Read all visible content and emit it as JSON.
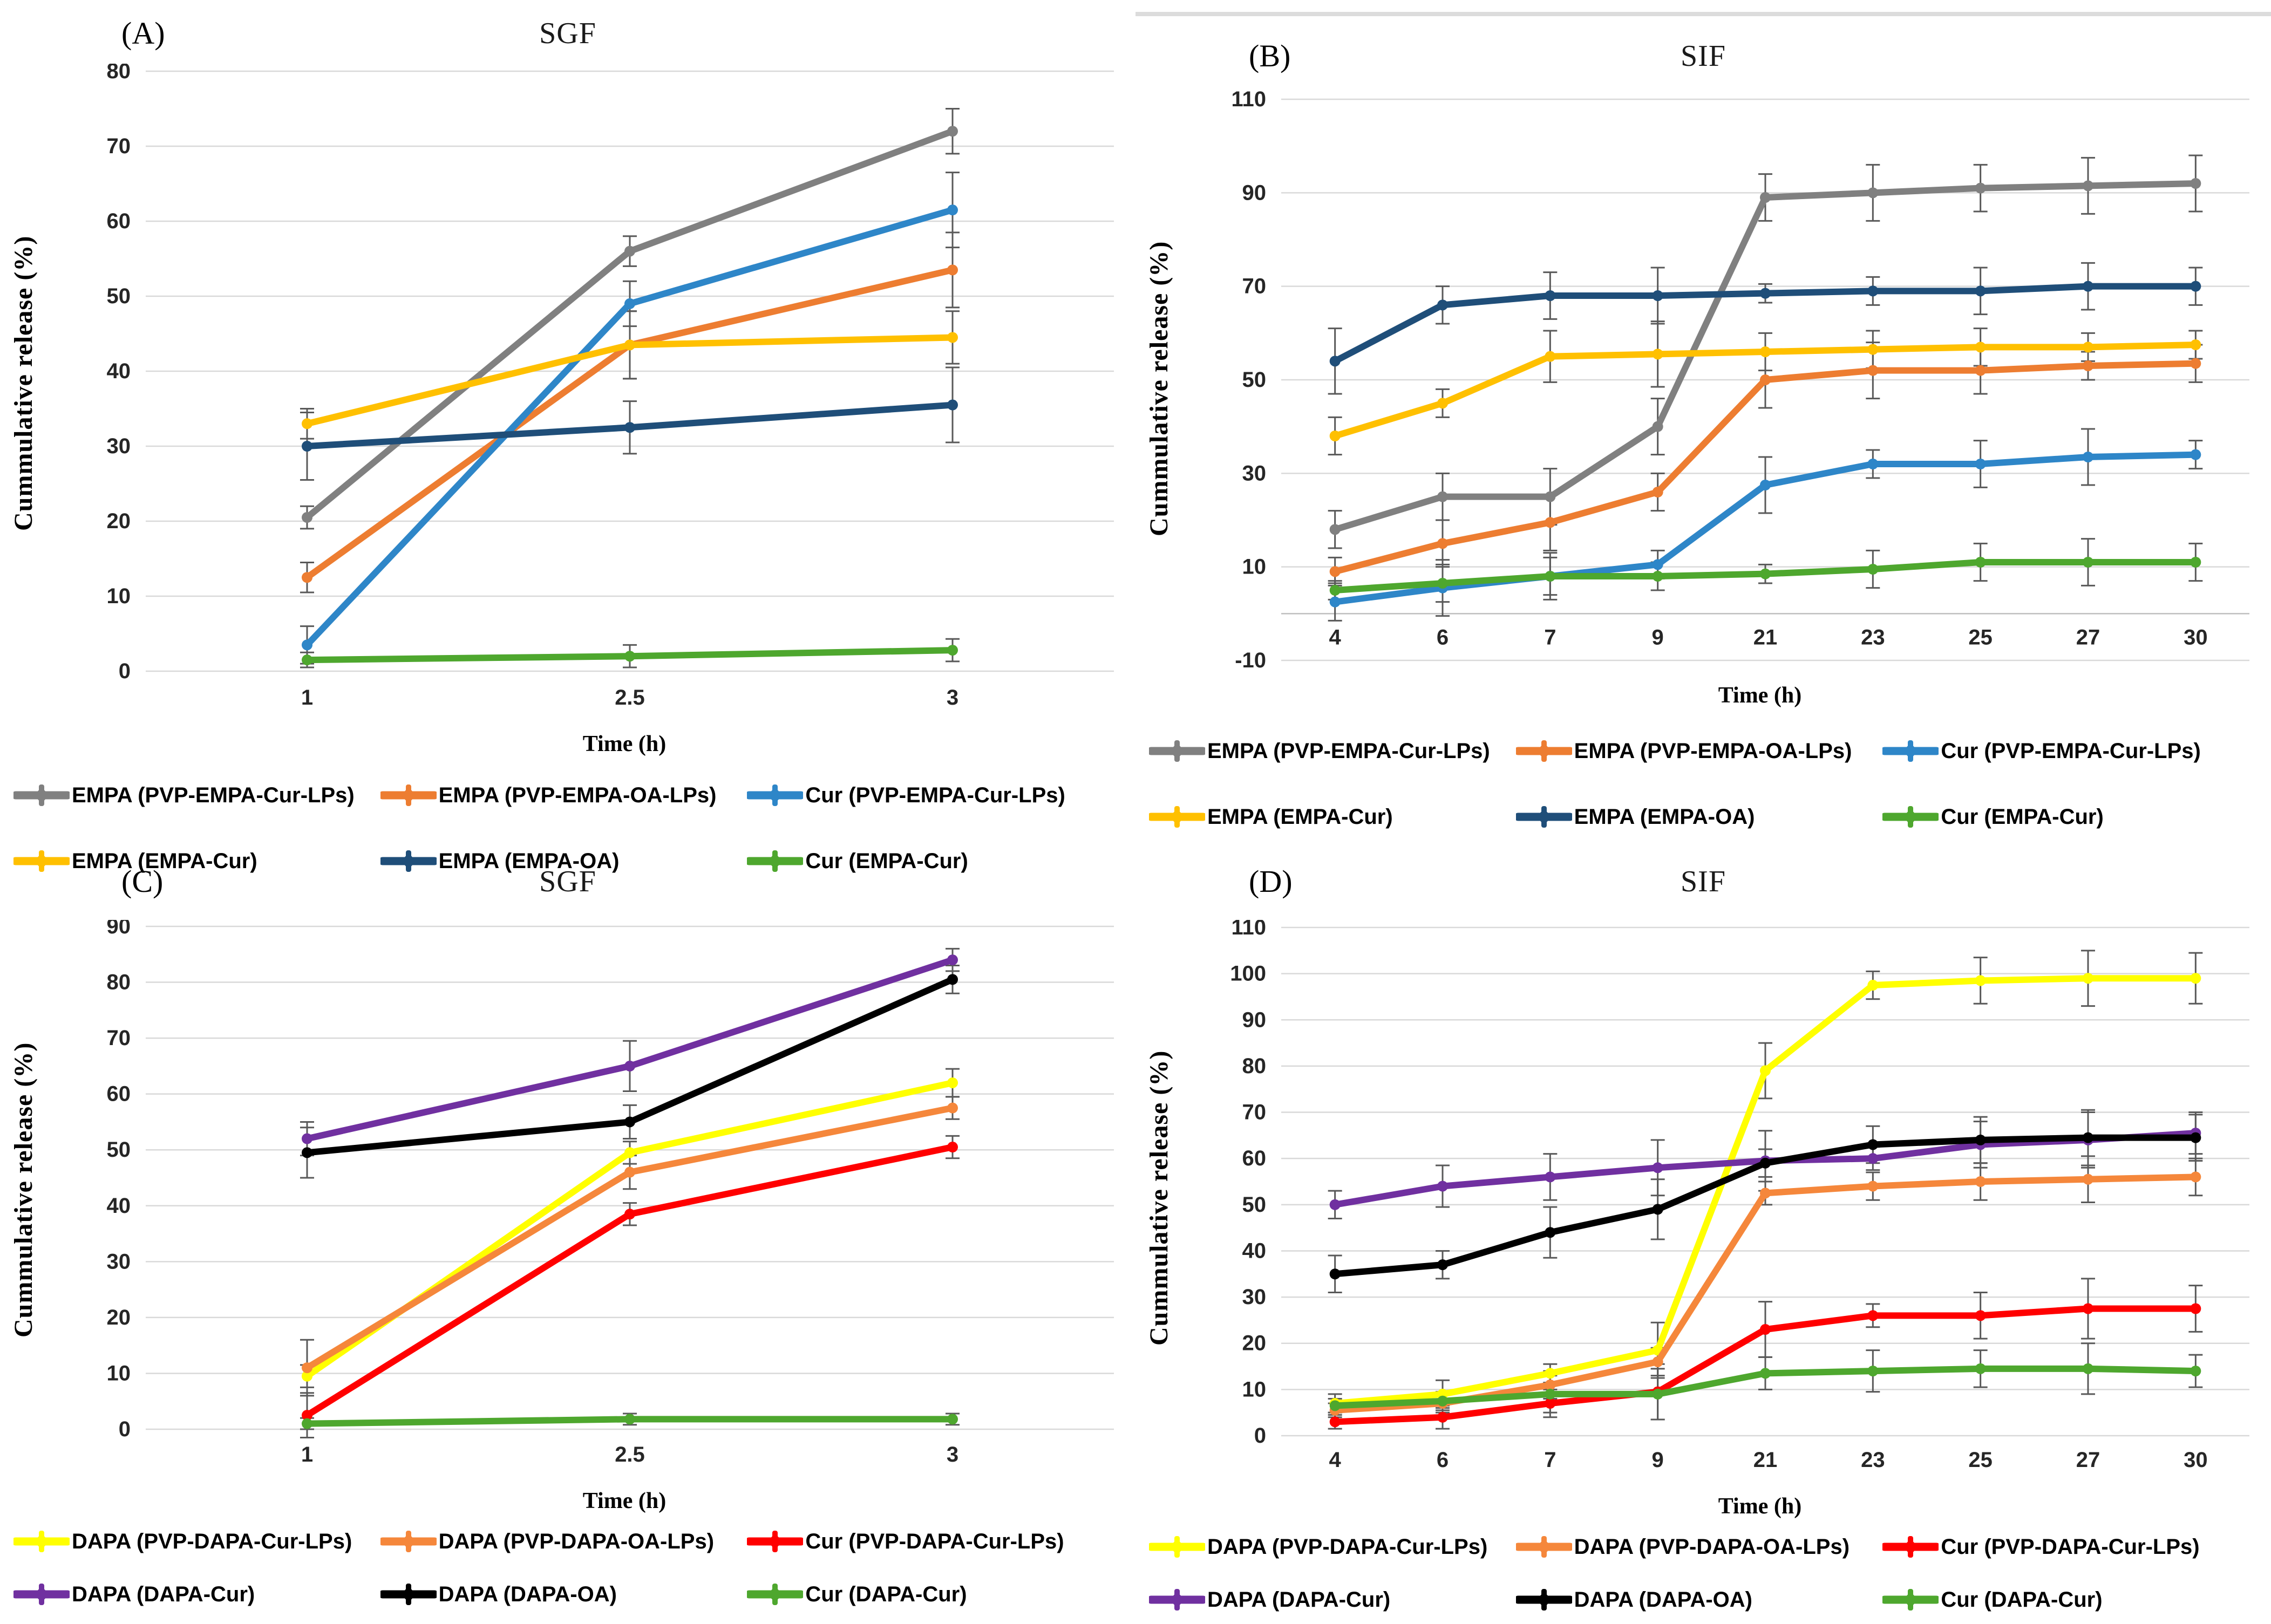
{
  "figure": {
    "xlabel": "Time (h)",
    "ylabel": "Cummulative release (%)"
  },
  "chart_data": [
    {
      "id": "A",
      "panel_label": "(A)",
      "title": "SGF",
      "type": "line",
      "xlabel": "Time (h)",
      "ylabel": "Cummulative release (%)",
      "categories": [
        "1",
        "2.5",
        "3"
      ],
      "ylim": [
        0,
        80
      ],
      "yticks": [
        0,
        10,
        20,
        30,
        40,
        50,
        60,
        70,
        80
      ],
      "grid": true,
      "legend_position": "bottom",
      "series": [
        {
          "name": "EMPA (PVP-EMPA-Cur-LPs)",
          "color": "#808080",
          "values": [
            20.5,
            56,
            72
          ],
          "err": [
            1.5,
            2,
            3
          ]
        },
        {
          "name": "EMPA (PVP-EMPA-OA-LPs)",
          "color": "#ED7D31",
          "values": [
            12.5,
            43.5,
            53.5
          ],
          "err": [
            2,
            4.5,
            5
          ]
        },
        {
          "name": "Cur (PVP-EMPA-Cur-LPs)",
          "color": "#2E86C8",
          "values": [
            3.5,
            49,
            61.5
          ],
          "err": [
            2.5,
            3,
            5
          ]
        },
        {
          "name": "EMPA (EMPA-Cur)",
          "color": "#FFC000",
          "values": [
            33,
            43.5,
            44.5
          ],
          "err": [
            2,
            4.5,
            3.5
          ]
        },
        {
          "name": "EMPA (EMPA-OA)",
          "color": "#1F4E79",
          "values": [
            30,
            32.5,
            35.5
          ],
          "err": [
            4.5,
            3.5,
            5
          ]
        },
        {
          "name": "Cur (EMPA-Cur)",
          "color": "#4EA72E",
          "values": [
            1.5,
            2,
            2.8
          ],
          "err": [
            1,
            1.5,
            1.5
          ]
        }
      ]
    },
    {
      "id": "B",
      "panel_label": "(B)",
      "title": "SIF",
      "type": "line",
      "xlabel": "Time (h)",
      "ylabel": "Cummulative release (%)",
      "categories": [
        "4",
        "6",
        "7",
        "9",
        "21",
        "23",
        "25",
        "27",
        "30"
      ],
      "ylim": [
        -10,
        110
      ],
      "yticks": [
        -10,
        10,
        30,
        50,
        70,
        90,
        110
      ],
      "grid": true,
      "legend_position": "bottom",
      "series": [
        {
          "name": "EMPA (PVP-EMPA-Cur-LPs)",
          "color": "#808080",
          "values": [
            18,
            25,
            25,
            40,
            89,
            90,
            91,
            91.5,
            92
          ],
          "err": [
            4,
            5,
            6,
            6,
            5,
            6,
            5,
            6,
            6
          ]
        },
        {
          "name": "EMPA (PVP-EMPA-OA-LPs)",
          "color": "#ED7D31",
          "values": [
            9,
            15,
            19.5,
            26,
            50,
            52,
            52,
            53,
            53.5
          ],
          "err": [
            3,
            5,
            6,
            4,
            6,
            6,
            5,
            3,
            4
          ]
        },
        {
          "name": "Cur (PVP-EMPA-Cur-LPs)",
          "color": "#2E86C8",
          "values": [
            2.5,
            5.5,
            8,
            10.5,
            27.5,
            32,
            32,
            33.5,
            34
          ],
          "err": [
            4,
            6,
            5,
            3,
            6,
            3,
            5,
            6,
            3
          ]
        },
        {
          "name": "EMPA (EMPA-Cur)",
          "color": "#FFC000",
          "values": [
            38,
            45,
            55,
            55.5,
            56,
            56.5,
            57,
            57,
            57.5
          ],
          "err": [
            4,
            3,
            5.5,
            7,
            4,
            4,
            4,
            3,
            3
          ]
        },
        {
          "name": "EMPA (EMPA-OA)",
          "color": "#1F4E79",
          "values": [
            54,
            66,
            68,
            68,
            68.5,
            69,
            69,
            70,
            70
          ],
          "err": [
            7,
            4,
            5,
            6,
            2,
            3,
            5,
            5,
            4
          ]
        },
        {
          "name": "Cur (EMPA-Cur)",
          "color": "#4EA72E",
          "values": [
            5,
            6.5,
            8,
            8,
            8.5,
            9.5,
            11,
            11,
            11
          ],
          "err": [
            2,
            4,
            4,
            3,
            2,
            4,
            4,
            5,
            4
          ]
        }
      ]
    },
    {
      "id": "C",
      "panel_label": "(C)",
      "title": "SGF",
      "type": "line",
      "xlabel": "Time (h)",
      "ylabel": "Cummulative release (%)",
      "categories": [
        "1",
        "2.5",
        "3"
      ],
      "ylim": [
        0,
        90
      ],
      "yticks": [
        0,
        10,
        20,
        30,
        40,
        50,
        60,
        70,
        80,
        90
      ],
      "grid": true,
      "legend_position": "bottom",
      "series": [
        {
          "name": "DAPA (PVP-DAPA-Cur-LPs)",
          "color": "#FFFF00",
          "values": [
            9.5,
            49.5,
            62
          ],
          "err": [
            2,
            2,
            2.5
          ]
        },
        {
          "name": "DAPA (PVP-DAPA-OA-LPs)",
          "color": "#F5873B",
          "values": [
            11,
            46,
            57.5
          ],
          "err": [
            5,
            3,
            2
          ]
        },
        {
          "name": "Cur (PVP-DAPA-Cur-LPs)",
          "color": "#FF0000",
          "values": [
            2.5,
            38.5,
            50.5
          ],
          "err": [
            4,
            2,
            2
          ]
        },
        {
          "name": "DAPA (DAPA-Cur)",
          "color": "#7030A0",
          "values": [
            52,
            65,
            84
          ],
          "err": [
            3,
            4.5,
            2
          ]
        },
        {
          "name": "DAPA (DAPA-OA)",
          "color": "#000000",
          "values": [
            49.5,
            55,
            80.5
          ],
          "err": [
            4.5,
            3,
            2.5
          ]
        },
        {
          "name": "Cur (DAPA-Cur)",
          "color": "#4EA72E",
          "values": [
            1,
            1.8,
            1.8
          ],
          "err": [
            1,
            1,
            1
          ]
        }
      ]
    },
    {
      "id": "D",
      "panel_label": "(D)",
      "title": "SIF",
      "type": "line",
      "xlabel": "Time (h)",
      "ylabel": "Cummulative release (%)",
      "categories": [
        "4",
        "6",
        "7",
        "9",
        "21",
        "23",
        "25",
        "27",
        "30"
      ],
      "ylim": [
        0,
        110
      ],
      "yticks": [
        0,
        10,
        20,
        30,
        40,
        50,
        60,
        70,
        80,
        90,
        100,
        110
      ],
      "grid": true,
      "legend_position": "bottom",
      "series": [
        {
          "name": "DAPA (PVP-DAPA-Cur-LPs)",
          "color": "#FFFF00",
          "values": [
            7,
            9,
            13.5,
            18.5,
            79,
            97.5,
            98.5,
            99,
            99
          ],
          "err": [
            2,
            3,
            2,
            6,
            6,
            3,
            5,
            6,
            5.5
          ]
        },
        {
          "name": "DAPA (PVP-DAPA-OA-LPs)",
          "color": "#F5873B",
          "values": [
            5.5,
            7,
            11,
            16,
            52.5,
            54,
            55,
            55.5,
            56
          ],
          "err": [
            1.5,
            2,
            3,
            3,
            2.5,
            3,
            4,
            5,
            4
          ]
        },
        {
          "name": "Cur (PVP-DAPA-Cur-LPs)",
          "color": "#FF0000",
          "values": [
            3,
            4,
            7,
            9.5,
            23,
            26,
            26,
            27.5,
            27.5
          ],
          "err": [
            1.5,
            2.5,
            3,
            6,
            6,
            2.5,
            5,
            6.5,
            5
          ]
        },
        {
          "name": "DAPA (DAPA-Cur)",
          "color": "#7030A0",
          "values": [
            50,
            54,
            56,
            58,
            59.5,
            60,
            63,
            64,
            65.5
          ],
          "err": [
            3,
            4.5,
            5,
            6,
            6.5,
            2.5,
            5,
            6,
            4.5
          ]
        },
        {
          "name": "DAPA (DAPA-OA)",
          "color": "#000000",
          "values": [
            35,
            37,
            44,
            49,
            59,
            63,
            64,
            64.5,
            64.5
          ],
          "err": [
            4,
            3,
            5.5,
            6.5,
            3,
            4,
            5,
            6,
            5
          ]
        },
        {
          "name": "Cur (DAPA-Cur)",
          "color": "#4EA72E",
          "values": [
            6.5,
            7.5,
            9,
            9,
            13.5,
            14,
            14.5,
            14.5,
            14
          ],
          "err": [
            1.5,
            2,
            4,
            5.5,
            3.5,
            4.5,
            4,
            5.5,
            3.5
          ]
        }
      ]
    }
  ]
}
